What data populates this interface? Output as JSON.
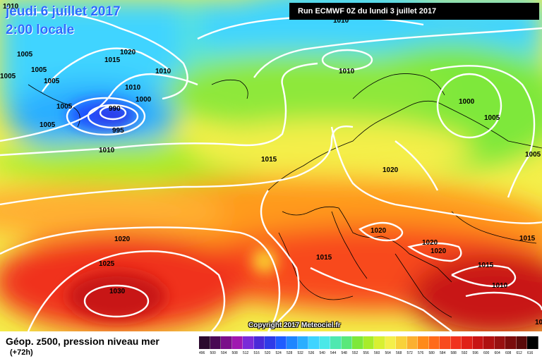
{
  "header": {
    "date_line1": "jeudi 6 juillet 2017",
    "date_line2": "2:00 locale",
    "run_label": "Run ECMWF 0Z du lundi 3 juillet 2017"
  },
  "copyright": "Copyright 2017 Meteociel.fr",
  "footer": {
    "title": "Géop. z500, pression niveau mer",
    "subtitle": "(+72h)"
  },
  "colors": {
    "deep_blue": "#1f4fff",
    "cyan": "#3fd4ff",
    "green": "#7ee83a",
    "yellow": "#f4ef4a",
    "orange": "#ff8a1a",
    "red": "#f0321e",
    "dark_red": "#b81414",
    "isobar": "#ffffff"
  },
  "isobar_labels": [
    {
      "text": "1010"
    },
    {
      "text": "1010"
    },
    {
      "text": "1005"
    },
    {
      "text": "1015"
    },
    {
      "text": "1020"
    },
    {
      "text": "1005"
    },
    {
      "text": "1005"
    },
    {
      "text": "1005"
    },
    {
      "text": "1010"
    },
    {
      "text": "1005"
    },
    {
      "text": "1010"
    },
    {
      "text": "1000"
    },
    {
      "text": "990"
    },
    {
      "text": "995"
    },
    {
      "text": "1005"
    },
    {
      "text": "1010"
    },
    {
      "text": "1010"
    },
    {
      "text": "1000"
    },
    {
      "text": "1005"
    },
    {
      "text": "1005"
    },
    {
      "text": "1015"
    },
    {
      "text": "1020"
    },
    {
      "text": "1020"
    },
    {
      "text": "1020"
    },
    {
      "text": "1025"
    },
    {
      "text": "1030"
    },
    {
      "text": "1015"
    },
    {
      "text": "1020"
    },
    {
      "text": "1020"
    },
    {
      "text": "1015"
    },
    {
      "text": "1015"
    },
    {
      "text": "1010"
    },
    {
      "text": "1005"
    }
  ],
  "scale": {
    "labels": [
      "496",
      "500",
      "504",
      "508",
      "512",
      "516",
      "520",
      "524",
      "528",
      "532",
      "536",
      "540",
      "544",
      "548",
      "552",
      "556",
      "560",
      "564",
      "568",
      "572",
      "576",
      "580",
      "584",
      "588",
      "592",
      "596",
      "600",
      "604",
      "608",
      "612",
      "616"
    ],
    "colors": [
      "#2b0a2e",
      "#4a0a55",
      "#7a0f8a",
      "#a018b0",
      "#7a2bd8",
      "#4a2ad8",
      "#2f3be8",
      "#1f5cff",
      "#1f86ff",
      "#2aaeff",
      "#3fd4ff",
      "#4ae8e8",
      "#4fe8b0",
      "#5ae87a",
      "#7ee83a",
      "#a8ec2a",
      "#d8f032",
      "#f4ef4a",
      "#f8d23a",
      "#fbb030",
      "#ff8a1a",
      "#ff6a1a",
      "#f84a1e",
      "#f0321e",
      "#e02018",
      "#c81414",
      "#b01010",
      "#981010",
      "#7a0c0c",
      "#5a0a0a",
      "#000000"
    ]
  }
}
